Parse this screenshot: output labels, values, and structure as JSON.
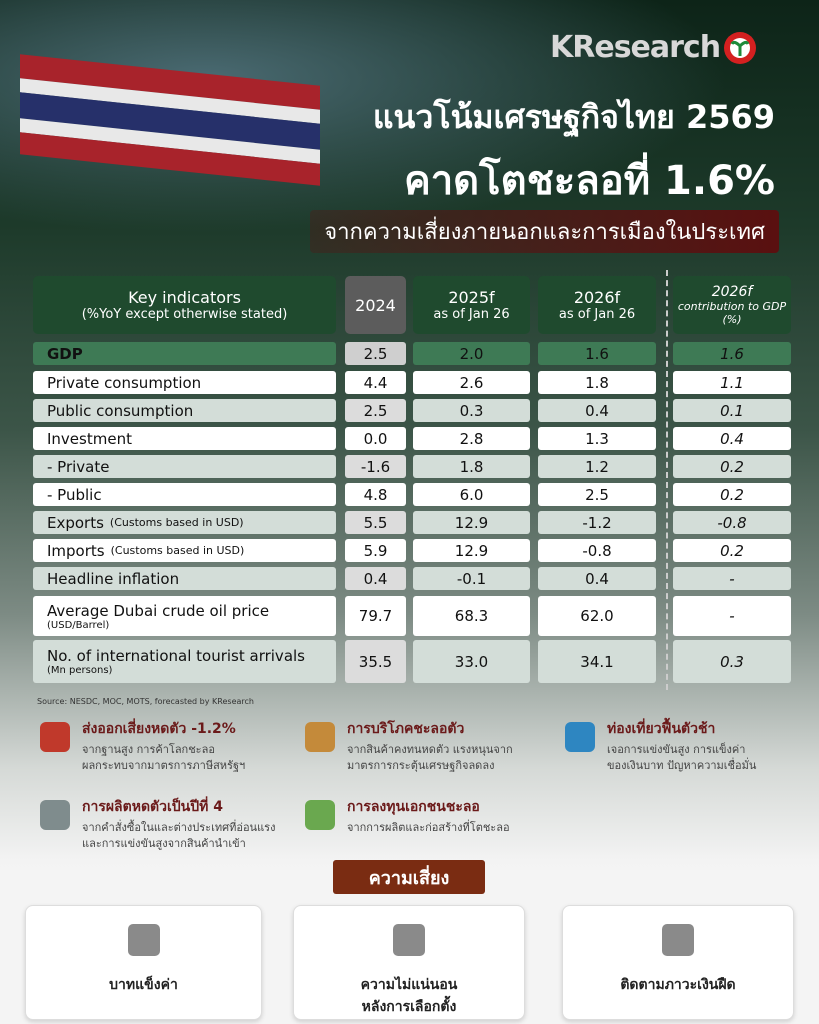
{
  "brand": "KResearch",
  "header": {
    "title": "แนวโน้มเศรษฐกิจไทย 2569",
    "headline": "คาดโตชะลอที่ 1.6%",
    "subtitle": "จากความเสี่ยงภายนอกและการเมืองในประเทศ"
  },
  "table": {
    "columns": [
      {
        "label": "Key indicators",
        "sublabel": "(%YoY except otherwise stated)"
      },
      {
        "label": "2024"
      },
      {
        "label": "2025f",
        "sublabel": "as of Jan 26"
      },
      {
        "label": "2026f",
        "sublabel": "as of Jan 26"
      },
      {
        "label": "2026f",
        "sublabel": "contribution to GDP (%)"
      }
    ],
    "rows": [
      {
        "label": "GDP",
        "values": [
          "2.5",
          "2.0",
          "1.6",
          "1.6"
        ]
      },
      {
        "label": "Private consumption",
        "values": [
          "4.4",
          "2.6",
          "1.8",
          "1.1"
        ]
      },
      {
        "label": "Public consumption",
        "values": [
          "2.5",
          "0.3",
          "0.4",
          "0.1"
        ]
      },
      {
        "label": "Investment",
        "values": [
          "0.0",
          "2.8",
          "1.3",
          "0.4"
        ]
      },
      {
        "label": "- Private",
        "values": [
          "-1.6",
          "1.8",
          "1.2",
          "0.2"
        ]
      },
      {
        "label": "- Public",
        "values": [
          "4.8",
          "6.0",
          "2.5",
          "0.2"
        ]
      },
      {
        "label": "Exports",
        "note": "(Customs based in USD)",
        "values": [
          "5.5",
          "12.9",
          "-1.2",
          "-0.8"
        ]
      },
      {
        "label": "Imports",
        "note": "(Customs based in USD)",
        "values": [
          "5.9",
          "12.9",
          "-0.8",
          "0.2"
        ]
      },
      {
        "label": "Headline inflation",
        "values": [
          "0.4",
          "-0.1",
          "0.4",
          "-"
        ]
      },
      {
        "label": "Average Dubai crude oil price",
        "note": "(USD/Barrel)",
        "values": [
          "79.7",
          "68.3",
          "62.0",
          "-"
        ]
      },
      {
        "label": "No. of international tourist arrivals",
        "note": "(Mn persons)",
        "values": [
          "35.5",
          "33.0",
          "34.1",
          "0.3"
        ]
      }
    ]
  },
  "source": "Source: NESDC, MOC, MOTS, forecasted by KResearch",
  "highlights": [
    {
      "title": "ส่งออกเสี่ยงหดตัว -1.2%",
      "lines": [
        "จากฐานสูง การค้าโลกชะลอ",
        "ผลกระทบจากมาตรการภาษีสหรัฐฯ"
      ]
    },
    {
      "title": "การบริโภคชะลอตัว",
      "lines": [
        "จากสินค้าคงทนหดตัว แรงหนุนจาก",
        "มาตรการกระตุ้นเศรษฐกิจลดลง"
      ]
    },
    {
      "title": "ท่องเที่ยวฟื้นตัวช้า",
      "lines": [
        "เจอการแข่งขันสูง การแข็งค่า",
        "ของเงินบาท ปัญหาความเชื่อมั่น"
      ]
    },
    {
      "title": "การผลิตหดตัวเป็นปีที่ 4",
      "lines": [
        "จากคำสั่งซื้อในและต่างประเทศที่อ่อนแรง",
        "และการแข่งขันสูงจากสินค้านำเข้า"
      ]
    },
    {
      "title": "การลงทุนเอกชนชะลอ",
      "lines": [
        "จากการผลิตและก่อสร้างที่โตชะลอ"
      ]
    }
  ],
  "risks": {
    "title": "ความเสี่ยง",
    "items": [
      {
        "lines": [
          "บาทแข็งค่า"
        ]
      },
      {
        "lines": [
          "ความไม่แน่นอน",
          "หลังการเลือกตั้ง"
        ]
      },
      {
        "lines": [
          "ติดตามภาวะเงินฝืด"
        ]
      }
    ]
  }
}
